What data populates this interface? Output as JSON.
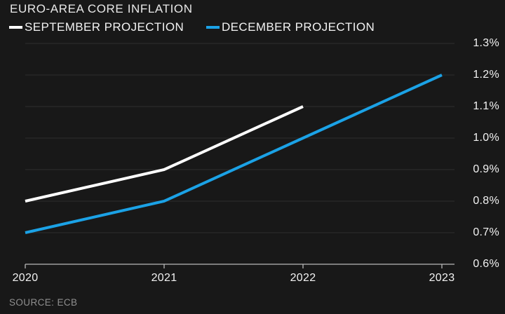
{
  "header": {
    "title": "EURO-AREA CORE INFLATION"
  },
  "legend": [
    {
      "label": "SEPTEMBER PROJECTION",
      "color": "#ffffff"
    },
    {
      "label": "DECEMBER PROJECTION",
      "color": "#1ba2e6"
    }
  ],
  "source": "SOURCE: ECB",
  "colors": {
    "background": "#181818",
    "gridline": "#2e2e2e",
    "axis": "#b8b8b8",
    "text": "#f2f2f2",
    "muted_text": "#8f8f8f",
    "series_september": "#ffffff",
    "series_december": "#1ba2e6"
  },
  "chart_data": {
    "type": "line",
    "title": "EURO-AREA CORE INFLATION",
    "xlabel": "",
    "ylabel": "",
    "unit": "%",
    "x_ticks": [
      2020,
      2021,
      2022,
      2023
    ],
    "x_tick_labels": [
      "2020",
      "2021",
      "2022",
      "2023"
    ],
    "y_ticks": [
      0.6,
      0.7,
      0.8,
      0.9,
      1.0,
      1.1,
      1.2,
      1.3
    ],
    "y_tick_labels": [
      "0.6%",
      "0.7%",
      "0.8%",
      "0.9%",
      "1.0%",
      "1.1%",
      "1.2%",
      "1.3%"
    ],
    "xlim": [
      2020,
      2023
    ],
    "ylim": [
      0.6,
      1.3
    ],
    "grid": "horizontal",
    "legend_position": "top-left",
    "series": [
      {
        "name": "SEPTEMBER PROJECTION",
        "color": "#ffffff",
        "x": [
          2020,
          2021,
          2022
        ],
        "values": [
          0.8,
          0.9,
          1.1
        ]
      },
      {
        "name": "DECEMBER PROJECTION",
        "color": "#1ba2e6",
        "x": [
          2020,
          2021,
          2022,
          2023
        ],
        "values": [
          0.7,
          0.8,
          1.0,
          1.2
        ]
      }
    ],
    "source": "SOURCE: ECB"
  }
}
